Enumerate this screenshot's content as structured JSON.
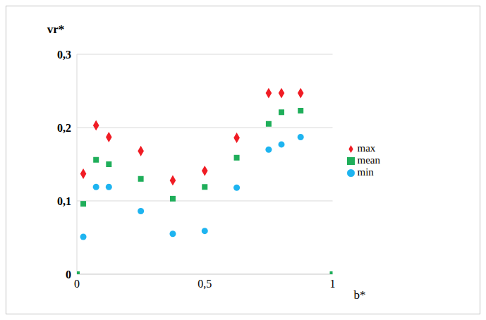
{
  "chart_data": {
    "type": "scatter",
    "x_label": "b*",
    "y_label": "vr*",
    "xlim": [
      0,
      1
    ],
    "xticks": [
      0,
      {
        "value": 0.5,
        "label": "0,5"
      },
      1
    ],
    "ylim": [
      0,
      0.3
    ],
    "yticks": [
      0,
      {
        "value": 0.1,
        "label": "0,1"
      },
      {
        "value": 0.2,
        "label": "0,2"
      },
      {
        "value": 0.3,
        "label": "0,3"
      }
    ],
    "grid": true,
    "legend": "right",
    "series": [
      {
        "name": "max",
        "color": "#f01c24",
        "marker": "diamond",
        "x": [
          0.025,
          0.075,
          0.125,
          0.25,
          0.375,
          0.5,
          0.625,
          0.75,
          0.8,
          0.875
        ],
        "values": [
          0.137,
          0.203,
          0.187,
          0.168,
          0.128,
          0.141,
          0.186,
          0.247,
          0.247,
          0.247
        ]
      },
      {
        "name": "min",
        "color": "#1eb4f0",
        "marker": "circle",
        "x": [
          0.025,
          0.075,
          0.125,
          0.25,
          0.375,
          0.5,
          0.625,
          0.75,
          0.8,
          0.875
        ],
        "values": [
          0.051,
          0.119,
          0.119,
          0.086,
          0.055,
          0.059,
          0.118,
          0.17,
          0.177,
          0.187
        ]
      },
      {
        "name": "mean",
        "color": "#1fae5a",
        "marker": "square",
        "x": [
          0,
          0.025,
          0.075,
          0.125,
          0.25,
          0.375,
          0.5,
          0.625,
          0.75,
          0.8,
          0.875,
          1
        ],
        "values": [
          0,
          0.096,
          0.156,
          0.15,
          0.13,
          0.103,
          0.119,
          0.159,
          0.205,
          0.221,
          0.223,
          0
        ]
      }
    ]
  }
}
